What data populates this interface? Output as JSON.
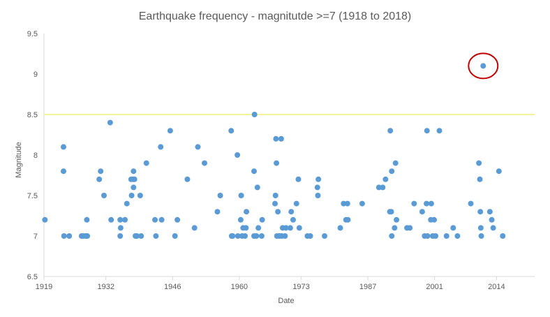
{
  "chart_data": {
    "type": "scatter",
    "title": "Earthquake frequency - magnitutde >=7 (1918 to 2018)",
    "xlabel": "Date",
    "ylabel": "Magnitude",
    "xlim": [
      1919,
      2022
    ],
    "ylim": [
      6.5,
      9.5
    ],
    "x_ticks": [
      1919,
      1932,
      1946,
      1960,
      1973,
      1987,
      2001,
      2014
    ],
    "y_ticks": [
      "6.5",
      "7",
      "7.5",
      "8",
      "8.5",
      "9",
      "9.5"
    ],
    "reference_line": {
      "y": 8.5,
      "color": "#f5f07a"
    },
    "highlight": {
      "x": 2011.2,
      "y": 9.1,
      "color": "#c00000"
    },
    "point_color": "#5b9bd5",
    "points": [
      [
        1919.2,
        7.2
      ],
      [
        1923.1,
        8.1
      ],
      [
        1923.1,
        7.8
      ],
      [
        1923.2,
        7.0
      ],
      [
        1924.3,
        7.0
      ],
      [
        1926.9,
        7.0
      ],
      [
        1927.3,
        7.0
      ],
      [
        1927.8,
        7.0
      ],
      [
        1928.0,
        7.2
      ],
      [
        1928.1,
        7.0
      ],
      [
        1930.6,
        7.7
      ],
      [
        1930.9,
        7.8
      ],
      [
        1931.6,
        7.5
      ],
      [
        1932.9,
        8.4
      ],
      [
        1933.1,
        7.2
      ],
      [
        1935.0,
        7.2
      ],
      [
        1935.1,
        7.1
      ],
      [
        1935.0,
        7.0
      ],
      [
        1936.0,
        7.2
      ],
      [
        1936.4,
        7.4
      ],
      [
        1937.3,
        7.7
      ],
      [
        1937.4,
        7.5
      ],
      [
        1937.7,
        7.7
      ],
      [
        1937.8,
        7.8
      ],
      [
        1937.8,
        7.6
      ],
      [
        1938.0,
        7.7
      ],
      [
        1938.2,
        7.0
      ],
      [
        1938.5,
        7.0
      ],
      [
        1939.2,
        7.5
      ],
      [
        1939.4,
        7.0
      ],
      [
        1940.5,
        7.9
      ],
      [
        1942.3,
        7.2
      ],
      [
        1942.5,
        7.0
      ],
      [
        1943.5,
        8.1
      ],
      [
        1943.7,
        7.2
      ],
      [
        1945.5,
        8.3
      ],
      [
        1946.5,
        7.0
      ],
      [
        1947.0,
        7.2
      ],
      [
        1949.1,
        7.7
      ],
      [
        1950.6,
        7.1
      ],
      [
        1951.3,
        8.1
      ],
      [
        1952.7,
        7.9
      ],
      [
        1955.4,
        7.3
      ],
      [
        1956.0,
        7.5
      ],
      [
        1958.3,
        8.3
      ],
      [
        1958.4,
        7.0
      ],
      [
        1958.6,
        7.0
      ],
      [
        1959.6,
        8.0
      ],
      [
        1959.7,
        7.0
      ],
      [
        1960.3,
        7.2
      ],
      [
        1960.4,
        7.5
      ],
      [
        1960.6,
        7.0
      ],
      [
        1960.8,
        7.1
      ],
      [
        1961.2,
        7.0
      ],
      [
        1961.4,
        7.1
      ],
      [
        1961.5,
        7.3
      ],
      [
        1963.1,
        7.8
      ],
      [
        1963.1,
        7.0
      ],
      [
        1963.2,
        8.5
      ],
      [
        1963.6,
        7.0
      ],
      [
        1963.8,
        7.6
      ],
      [
        1964.0,
        7.1
      ],
      [
        1964.7,
        7.0
      ],
      [
        1964.8,
        7.2
      ],
      [
        1967.5,
        7.4
      ],
      [
        1967.6,
        7.5
      ],
      [
        1967.7,
        8.2
      ],
      [
        1967.8,
        7.9
      ],
      [
        1967.9,
        7.0
      ],
      [
        1968.1,
        7.3
      ],
      [
        1968.4,
        7.0
      ],
      [
        1968.8,
        8.2
      ],
      [
        1968.9,
        7.0
      ],
      [
        1969.1,
        7.1
      ],
      [
        1969.6,
        7.0
      ],
      [
        1969.8,
        7.1
      ],
      [
        1970.7,
        7.1
      ],
      [
        1970.9,
        7.3
      ],
      [
        1971.3,
        7.2
      ],
      [
        1972.0,
        7.4
      ],
      [
        1972.4,
        7.7
      ],
      [
        1972.6,
        7.1
      ],
      [
        1974.3,
        7.0
      ],
      [
        1974.9,
        7.0
      ],
      [
        1976.4,
        7.6
      ],
      [
        1976.5,
        7.5
      ],
      [
        1976.6,
        7.7
      ],
      [
        1977.9,
        7.0
      ],
      [
        1981.2,
        7.1
      ],
      [
        1981.9,
        7.4
      ],
      [
        1982.4,
        7.2
      ],
      [
        1982.7,
        7.4
      ],
      [
        1982.8,
        7.2
      ],
      [
        1985.8,
        7.4
      ],
      [
        1989.3,
        7.6
      ],
      [
        1990.1,
        7.6
      ],
      [
        1990.7,
        7.7
      ],
      [
        1991.6,
        7.3
      ],
      [
        1991.7,
        8.3
      ],
      [
        1991.9,
        7.3
      ],
      [
        1992.0,
        7.8
      ],
      [
        1992.0,
        7.0
      ],
      [
        1992.6,
        7.1
      ],
      [
        1992.8,
        7.9
      ],
      [
        1993.0,
        7.2
      ],
      [
        1995.2,
        7.1
      ],
      [
        1995.8,
        7.1
      ],
      [
        1996.7,
        7.4
      ],
      [
        1998.4,
        7.3
      ],
      [
        1998.9,
        7.0
      ],
      [
        1999.3,
        7.4
      ],
      [
        1999.4,
        8.3
      ],
      [
        1999.5,
        7.0
      ],
      [
        2000.2,
        7.2
      ],
      [
        2000.3,
        7.4
      ],
      [
        2000.6,
        7.0
      ],
      [
        2000.9,
        7.2
      ],
      [
        2001.2,
        7.0
      ],
      [
        2002.0,
        8.3
      ],
      [
        2003.5,
        7.0
      ],
      [
        2004.9,
        7.1
      ],
      [
        2005.8,
        7.0
      ],
      [
        2008.6,
        7.4
      ],
      [
        2010.3,
        7.9
      ],
      [
        2010.5,
        7.7
      ],
      [
        2010.6,
        7.3
      ],
      [
        2010.7,
        7.1
      ],
      [
        2010.8,
        7.0
      ],
      [
        2011.2,
        9.1
      ],
      [
        2012.6,
        7.3
      ],
      [
        2013.0,
        7.2
      ],
      [
        2013.3,
        7.1
      ],
      [
        2014.5,
        7.8
      ],
      [
        2015.3,
        7.0
      ]
    ]
  }
}
